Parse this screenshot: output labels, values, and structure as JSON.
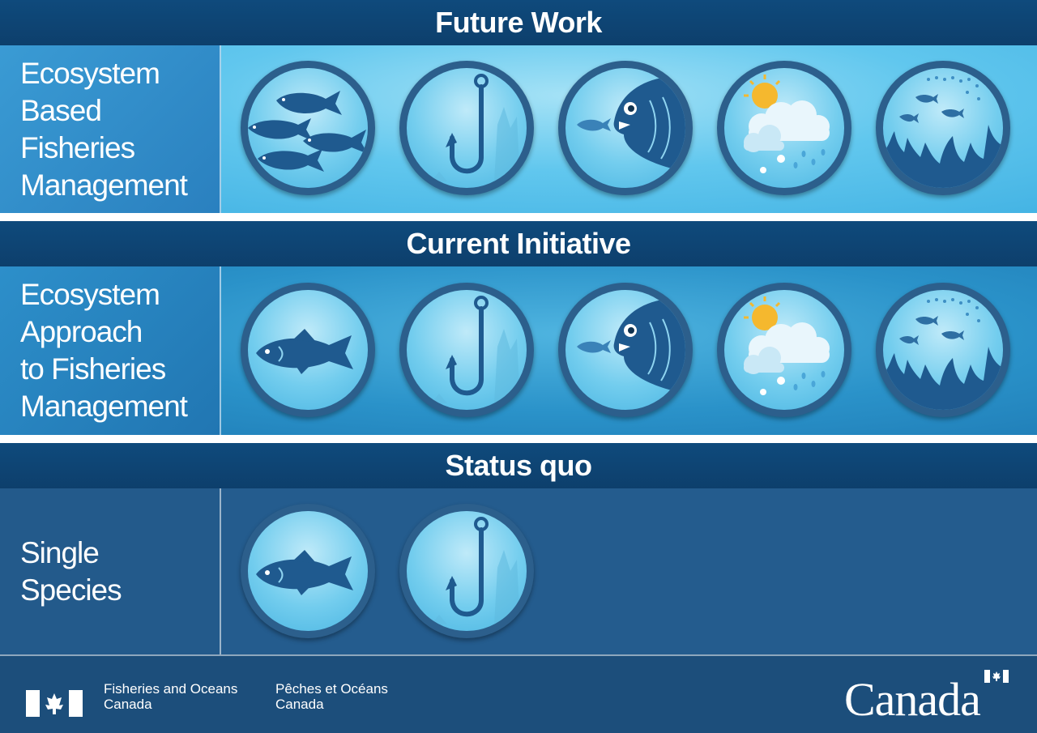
{
  "sections": [
    {
      "title": "Future Work",
      "label_lines": [
        "Ecosystem",
        "Based",
        "Fisheries",
        "Management"
      ],
      "icons": [
        "fish-school-icon",
        "fishing-hook-icon",
        "predator-fish-icon",
        "weather-icon",
        "reef-habitat-icon"
      ]
    },
    {
      "title": "Current Initiative",
      "label_lines": [
        "Ecosystem",
        "Approach",
        "to Fisheries",
        "Management"
      ],
      "icons": [
        "single-fish-icon",
        "fishing-hook-icon",
        "predator-fish-icon",
        "weather-icon",
        "reef-habitat-icon"
      ]
    },
    {
      "title": "Status quo",
      "label_lines": [
        "Single",
        "Species"
      ],
      "icons": [
        "single-fish-icon",
        "fishing-hook-icon"
      ]
    }
  ],
  "footer": {
    "dept_en": [
      "Fisheries and Oceans",
      "Canada"
    ],
    "dept_fr": [
      "Pêches et Océans",
      "Canada"
    ],
    "wordmark": "Canada"
  },
  "colors": {
    "header_bg": "#0f4a7c",
    "section1_bg": "#4fc0ea",
    "section2_bg": "#2a8fc6",
    "section3_bg": "#245c8e",
    "footer_bg": "#1c4e7b",
    "circle_border": "#2c5f8c",
    "icon_dark": "#1f5a8f",
    "flag_red": "#d52b1e"
  }
}
